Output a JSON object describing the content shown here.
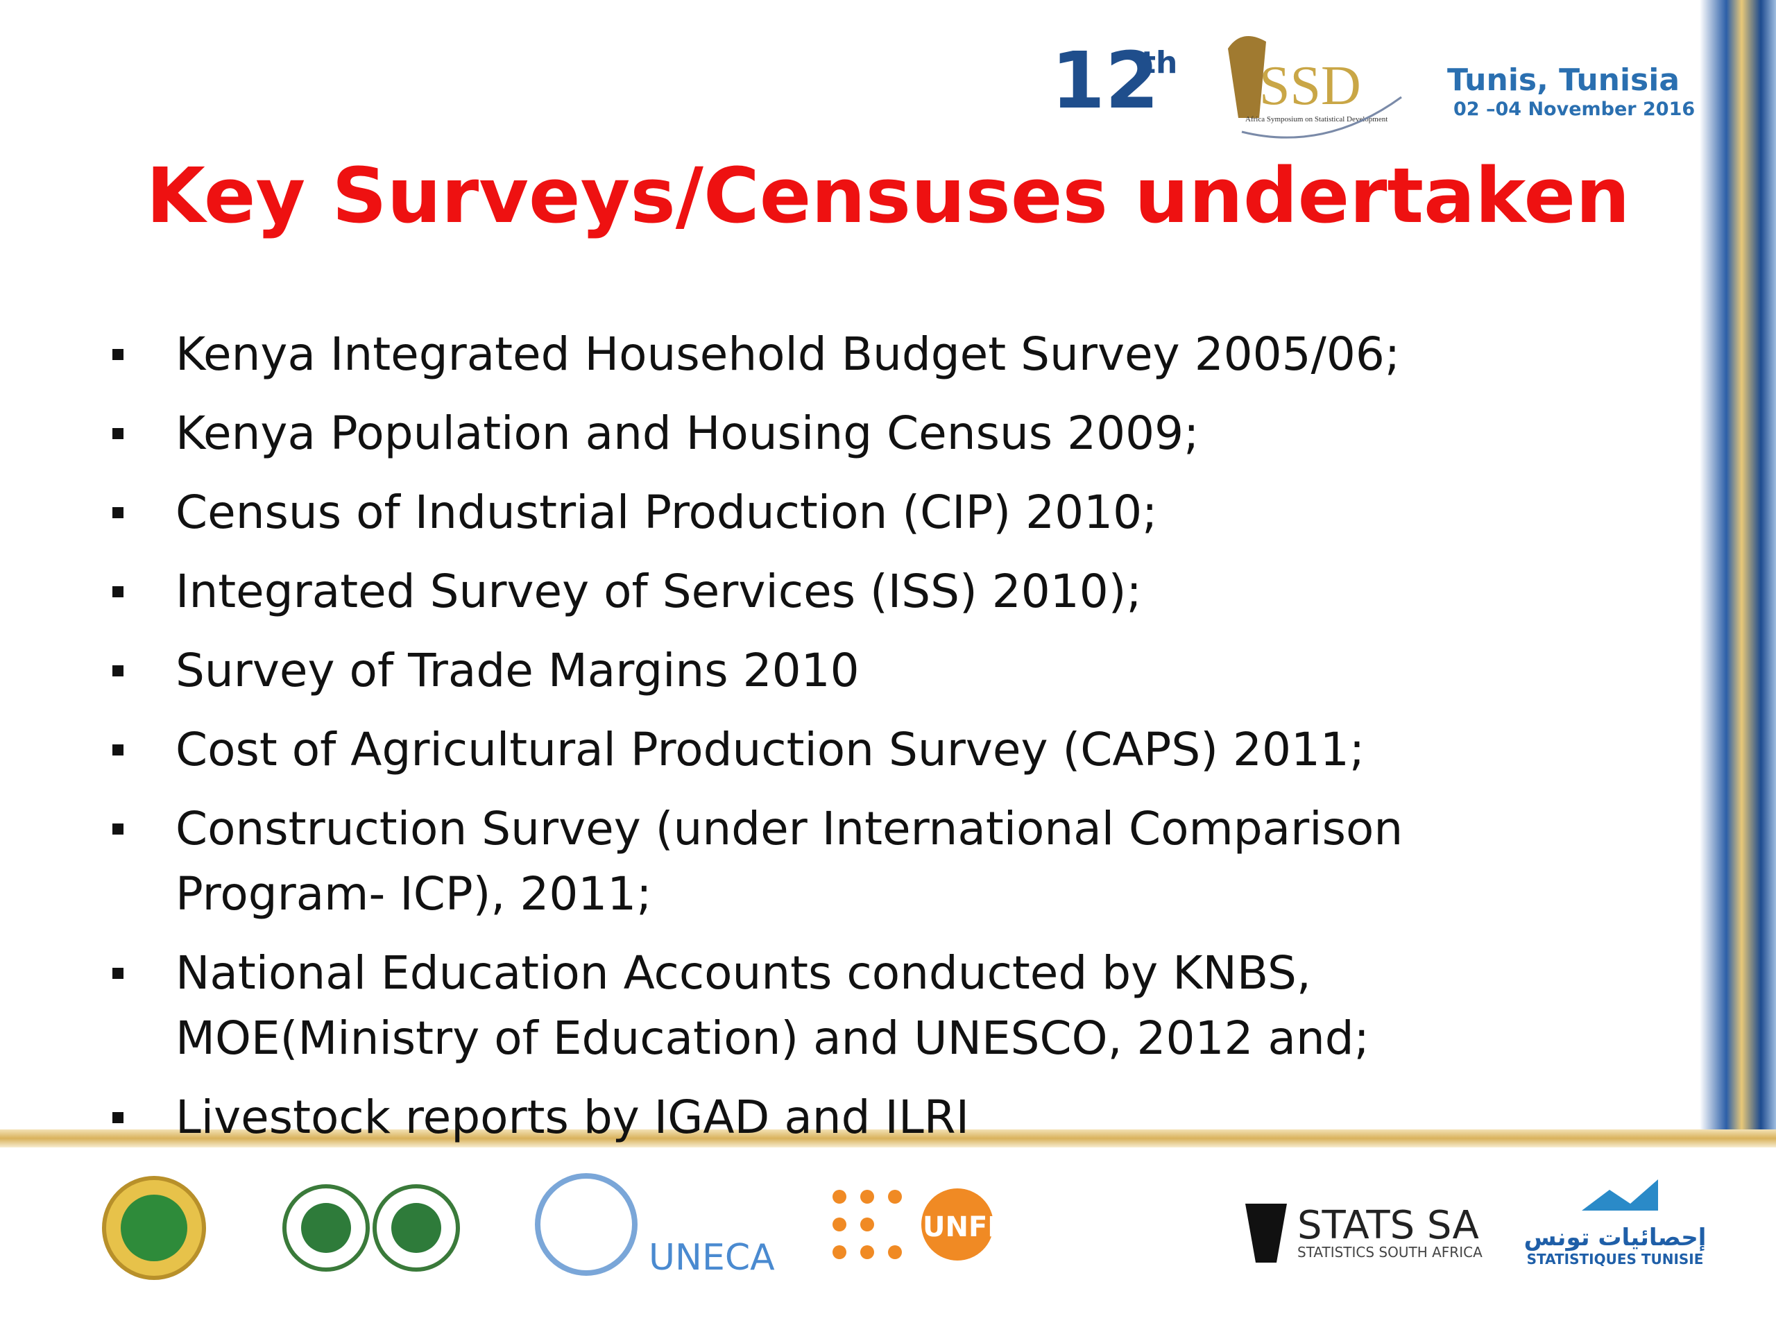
{
  "header": {
    "edition": "12",
    "edition_suffix": "th",
    "logo_text": "SSD",
    "logo_caption": "Africa Symposium on Statistical Development",
    "city": "Tunis, Tunisia",
    "dates": "02 –04 November 2016"
  },
  "title": "Key Surveys/Censuses undertaken",
  "bullets": [
    {
      "lines": [
        "Kenya Integrated Household Budget Survey 2005/06;"
      ]
    },
    {
      "lines": [
        "Kenya Population and Housing Census 2009;"
      ]
    },
    {
      "lines": [
        "Census of Industrial Production (CIP) 2010;"
      ]
    },
    {
      "lines": [
        "Integrated Survey of Services (ISS) 2010);"
      ]
    },
    {
      "lines": [
        "Survey of Trade Margins 2010"
      ]
    },
    {
      "lines": [
        "Cost of Agricultural Production Survey (CAPS) 2011;"
      ]
    },
    {
      "lines": [
        "Construction Survey (under International Comparison",
        "Program- ICP), 2011;"
      ]
    },
    {
      "lines": [
        "National Education Accounts conducted by KNBS,",
        "MOE(Ministry of Education) and UNESCO, 2012 and;"
      ]
    },
    {
      "lines": [
        "Livestock reports by IGAD and ILRI"
      ]
    }
  ],
  "footer": {
    "uneca": "UNECA",
    "unfpa": "UNFPA",
    "statssa": "STATS SA",
    "statssa_sub": "STATISTICS SOUTH AFRICA",
    "tunisia_ar": "إحصائيات تونس",
    "tunisia_fr": "STATISTIQUES TUNISIE"
  }
}
